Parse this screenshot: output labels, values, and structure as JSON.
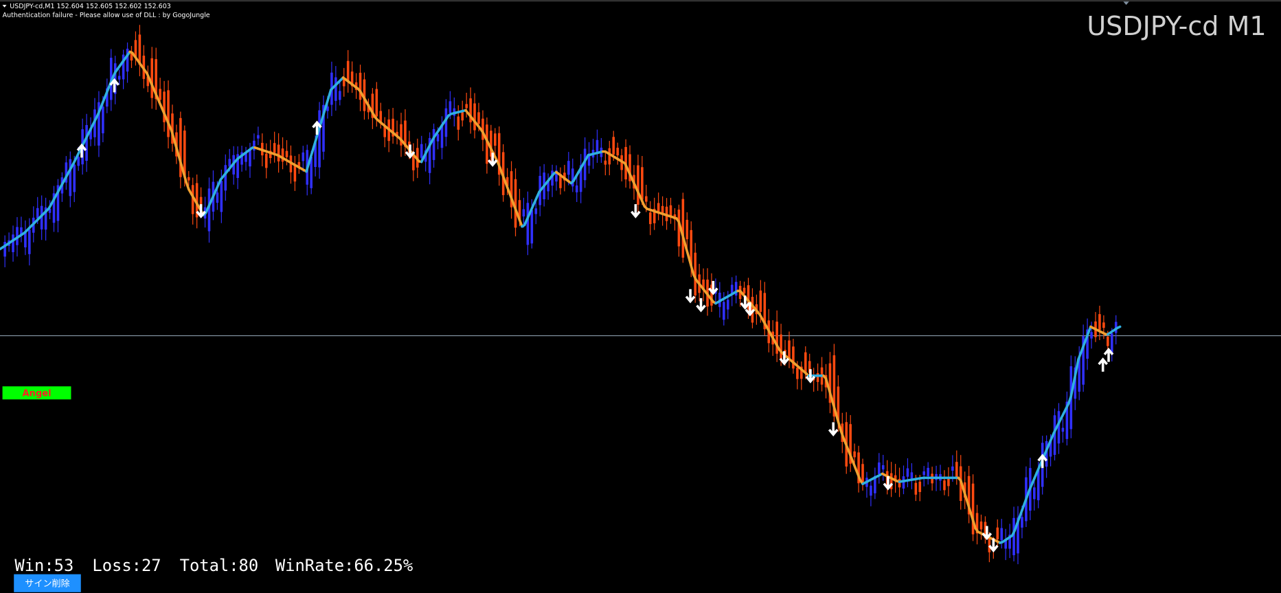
{
  "header": {
    "quote": "USDJPY-cd,M1  152.604 152.605 152.602 152.603",
    "message": "Authentication failure - Please allow use of DLL : by GogoJungle"
  },
  "chart_title": "USDJPY-cd M1",
  "angel_button": "Angel",
  "stats": [
    "Win:53",
    "Loss:27",
    "Total:80",
    "WinRate:66.25%"
  ],
  "delete_button": "サイン削除"
}
